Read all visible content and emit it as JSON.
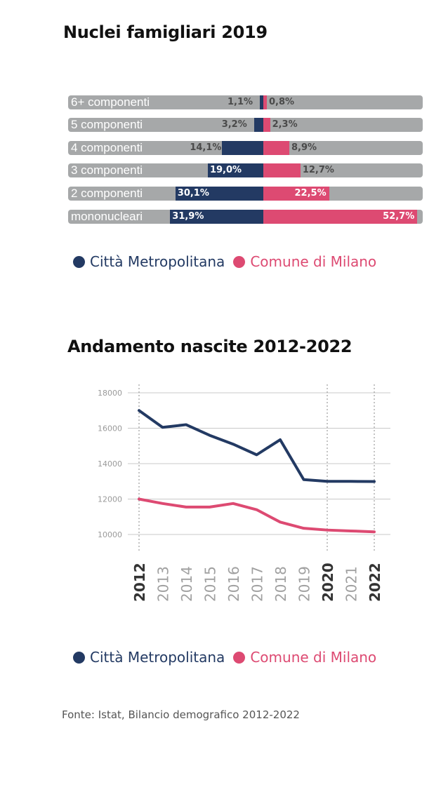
{
  "chart_data": [
    {
      "type": "bar",
      "title": "Nuclei famigliari 2019",
      "categories": [
        "6+ componenti",
        "5 componenti",
        "4 componenti",
        "3 componenti",
        "2 componenti",
        "mononucleari"
      ],
      "series": [
        {
          "name": "Città Metropolitana",
          "values": [
            1.1,
            3.2,
            14.1,
            19.0,
            30.1,
            31.9
          ],
          "labels": [
            "1,1%",
            "3,2%",
            "14,1%",
            "19,0%",
            "30,1%",
            "31,9%"
          ]
        },
        {
          "name": "Comune di Milano",
          "values": [
            0.8,
            2.3,
            8.9,
            12.7,
            22.5,
            52.7
          ],
          "labels": [
            "0,8%",
            "2,3%",
            "8,9%",
            "12,7%",
            "22,5%",
            "52,7%"
          ]
        }
      ],
      "legend": "bottom"
    },
    {
      "type": "line",
      "title": "Andamento nascite 2012-2022",
      "x": [
        2012,
        2013,
        2014,
        2015,
        2016,
        2017,
        2018,
        2019,
        2020,
        2021,
        2022
      ],
      "x_labels": [
        "2012",
        "2013",
        "2014",
        "2015",
        "2016",
        "2017",
        "2018",
        "2019",
        "2020",
        "2021",
        "2022"
      ],
      "highlighted_years": [
        2012,
        2020,
        2022
      ],
      "series": [
        {
          "name": "Città Metropolitana",
          "values": [
            17000,
            16050,
            16200,
            15600,
            15100,
            14500,
            15350,
            13100,
            13000,
            13000,
            12990
          ]
        },
        {
          "name": "Comune di Milano",
          "values": [
            12000,
            11750,
            11550,
            11550,
            11750,
            11400,
            10700,
            10350,
            10250,
            10200,
            10150
          ]
        }
      ],
      "y_ticks": [
        10000,
        12000,
        14000,
        16000,
        18000
      ],
      "ylim": [
        9000,
        18500
      ],
      "grid": true,
      "legend": "bottom"
    }
  ],
  "legend": [
    {
      "label": "Città Metropolitana",
      "color": "#233a63"
    },
    {
      "label": "Comune di Milano",
      "color": "#dd4a72"
    }
  ],
  "source": "Fonte: Istat, Bilancio demografico 2012-2022"
}
